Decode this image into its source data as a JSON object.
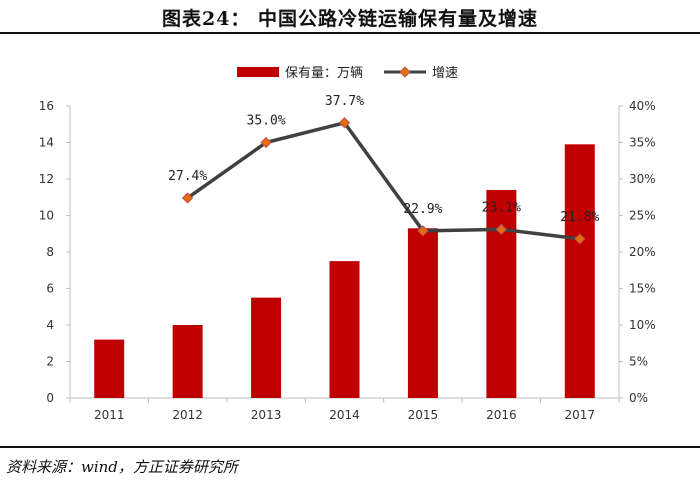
{
  "title": "图表24：  中国公路冷链运输保有量及增速",
  "source": "资料来源：wind，方正证券研究所",
  "chart_data": {
    "type": "bar",
    "categories": [
      "2011",
      "2012",
      "2013",
      "2014",
      "2015",
      "2016",
      "2017"
    ],
    "series": [
      {
        "name": "保有量：万辆",
        "type": "bar",
        "axis": "left",
        "color": "#C00000",
        "values": [
          3.2,
          4.0,
          5.5,
          7.5,
          9.3,
          11.4,
          13.9
        ]
      },
      {
        "name": "增速",
        "type": "line",
        "axis": "right",
        "color": "#404040",
        "marker_color": "#E46C0A",
        "values": [
          null,
          27.4,
          35.0,
          37.7,
          22.9,
          23.1,
          21.8
        ],
        "labels": [
          "",
          "27.4%",
          "35.0%",
          "37.7%",
          "22.9%",
          "23.1%",
          "21.8%"
        ]
      }
    ],
    "y_left": {
      "range": [
        0,
        16
      ],
      "ticks": [
        "0",
        "2",
        "4",
        "6",
        "8",
        "10",
        "12",
        "14",
        "16"
      ]
    },
    "y_right": {
      "range": [
        0,
        40
      ],
      "ticks": [
        "0%",
        "5%",
        "10%",
        "15%",
        "20%",
        "25%",
        "30%",
        "35%",
        "40%"
      ]
    },
    "legend_position": "top",
    "grid": false
  }
}
